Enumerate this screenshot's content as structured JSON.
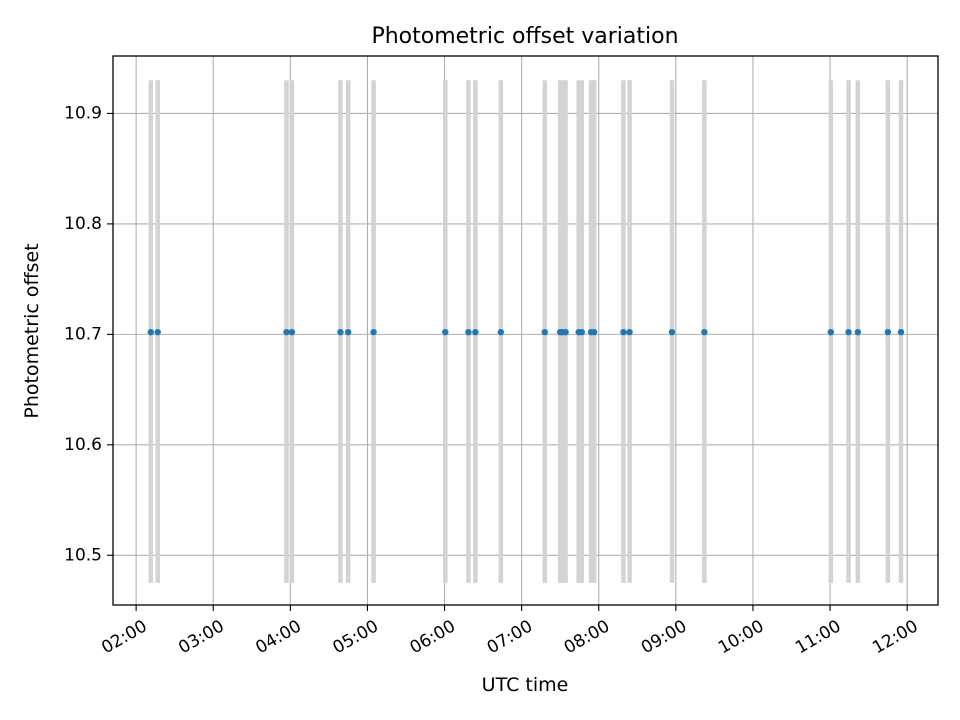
{
  "chart_data": {
    "type": "scatter",
    "title": "Photometric offset variation",
    "xlabel": "UTC time",
    "ylabel": "Photometric offset",
    "x_unit": "hours",
    "xlim": [
      1.7,
      12.4
    ],
    "ylim": [
      10.455,
      10.952
    ],
    "grid": true,
    "x_ticks": [
      {
        "value": 2,
        "label": "02:00"
      },
      {
        "value": 3,
        "label": "03:00"
      },
      {
        "value": 4,
        "label": "04:00"
      },
      {
        "value": 5,
        "label": "05:00"
      },
      {
        "value": 6,
        "label": "06:00"
      },
      {
        "value": 7,
        "label": "07:00"
      },
      {
        "value": 8,
        "label": "08:00"
      },
      {
        "value": 9,
        "label": "09:00"
      },
      {
        "value": 10,
        "label": "10:00"
      },
      {
        "value": 11,
        "label": "11:00"
      },
      {
        "value": 12,
        "label": "12:00"
      }
    ],
    "y_ticks": [
      {
        "value": 10.5,
        "label": "10.5"
      },
      {
        "value": 10.6,
        "label": "10.6"
      },
      {
        "value": 10.7,
        "label": "10.7"
      },
      {
        "value": 10.8,
        "label": "10.8"
      },
      {
        "value": 10.9,
        "label": "10.9"
      }
    ],
    "error_range": [
      10.475,
      10.93
    ],
    "point_color": "#1f77b4",
    "errorbar_color": "#d3d3d3",
    "points": [
      {
        "x": 2.19,
        "y": 10.702
      },
      {
        "x": 2.28,
        "y": 10.702
      },
      {
        "x": 3.95,
        "y": 10.702
      },
      {
        "x": 4.02,
        "y": 10.702
      },
      {
        "x": 4.65,
        "y": 10.702
      },
      {
        "x": 4.75,
        "y": 10.702
      },
      {
        "x": 5.08,
        "y": 10.702
      },
      {
        "x": 6.01,
        "y": 10.702
      },
      {
        "x": 6.31,
        "y": 10.702
      },
      {
        "x": 6.4,
        "y": 10.702
      },
      {
        "x": 6.73,
        "y": 10.702
      },
      {
        "x": 7.3,
        "y": 10.702
      },
      {
        "x": 7.5,
        "y": 10.702
      },
      {
        "x": 7.53,
        "y": 10.702
      },
      {
        "x": 7.57,
        "y": 10.702
      },
      {
        "x": 7.74,
        "y": 10.702
      },
      {
        "x": 7.78,
        "y": 10.702
      },
      {
        "x": 7.9,
        "y": 10.702
      },
      {
        "x": 7.94,
        "y": 10.702
      },
      {
        "x": 8.32,
        "y": 10.702
      },
      {
        "x": 8.4,
        "y": 10.702
      },
      {
        "x": 8.95,
        "y": 10.702
      },
      {
        "x": 9.37,
        "y": 10.702
      },
      {
        "x": 11.01,
        "y": 10.702
      },
      {
        "x": 11.24,
        "y": 10.702
      },
      {
        "x": 11.36,
        "y": 10.702
      },
      {
        "x": 11.75,
        "y": 10.702
      },
      {
        "x": 11.92,
        "y": 10.702
      }
    ]
  }
}
